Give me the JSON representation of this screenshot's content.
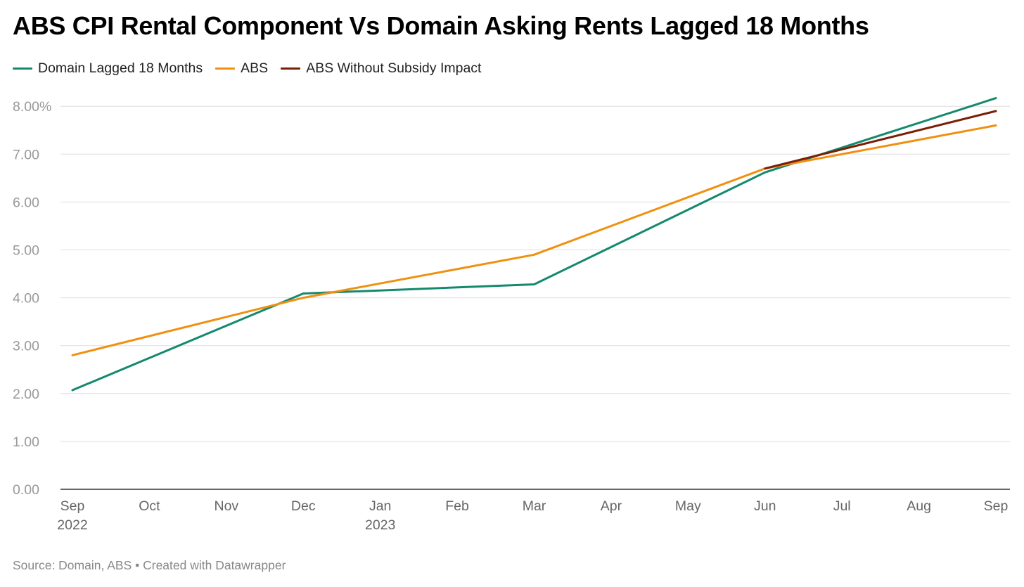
{
  "chart_data": {
    "type": "line",
    "title": "ABS CPI Rental Component Vs Domain Asking Rents Lagged 18 Months",
    "x": [
      "2022-09",
      "2022-10",
      "2022-11",
      "2022-12",
      "2023-01",
      "2023-02",
      "2023-03",
      "2023-04",
      "2023-05",
      "2023-06",
      "2023-07",
      "2023-08",
      "2023-09"
    ],
    "x_tick_labels": [
      {
        "month": "Sep",
        "year": "2022"
      },
      {
        "month": "Oct",
        "year": ""
      },
      {
        "month": "Nov",
        "year": ""
      },
      {
        "month": "Dec",
        "year": ""
      },
      {
        "month": "Jan",
        "year": "2023"
      },
      {
        "month": "Feb",
        "year": ""
      },
      {
        "month": "Mar",
        "year": ""
      },
      {
        "month": "Apr",
        "year": ""
      },
      {
        "month": "May",
        "year": ""
      },
      {
        "month": "Jun",
        "year": ""
      },
      {
        "month": "Jul",
        "year": ""
      },
      {
        "month": "Aug",
        "year": ""
      },
      {
        "month": "Sep",
        "year": ""
      }
    ],
    "y_tick_labels": [
      "0.00",
      "1.00",
      "2.00",
      "3.00",
      "4.00",
      "5.00",
      "6.00",
      "7.00",
      "8.00%"
    ],
    "y_ticks": [
      0,
      1,
      2,
      3,
      4,
      5,
      6,
      7,
      8
    ],
    "ylim": [
      0,
      8.2
    ],
    "grid": true,
    "legend_position": "top-left",
    "series": [
      {
        "name": "Domain Lagged 18 Months",
        "color": "#14896e",
        "points": [
          {
            "x": "2022-09",
            "y": 2.07
          },
          {
            "x": "2022-12",
            "y": 4.09
          },
          {
            "x": "2023-03",
            "y": 4.28
          },
          {
            "x": "2023-06",
            "y": 6.62
          },
          {
            "x": "2023-09",
            "y": 8.17
          }
        ]
      },
      {
        "name": "ABS",
        "color": "#f0900f",
        "points": [
          {
            "x": "2022-09",
            "y": 2.8
          },
          {
            "x": "2022-12",
            "y": 4.0
          },
          {
            "x": "2023-03",
            "y": 4.9
          },
          {
            "x": "2023-06",
            "y": 6.7
          },
          {
            "x": "2023-09",
            "y": 7.6
          }
        ]
      },
      {
        "name": "ABS Without Subsidy Impact",
        "color": "#7a1f07",
        "points": [
          {
            "x": "2023-06",
            "y": 6.7
          },
          {
            "x": "2023-09",
            "y": 7.9
          }
        ]
      }
    ]
  },
  "footer": {
    "source": "Source: Domain, ABS • Created with Datawrapper"
  }
}
